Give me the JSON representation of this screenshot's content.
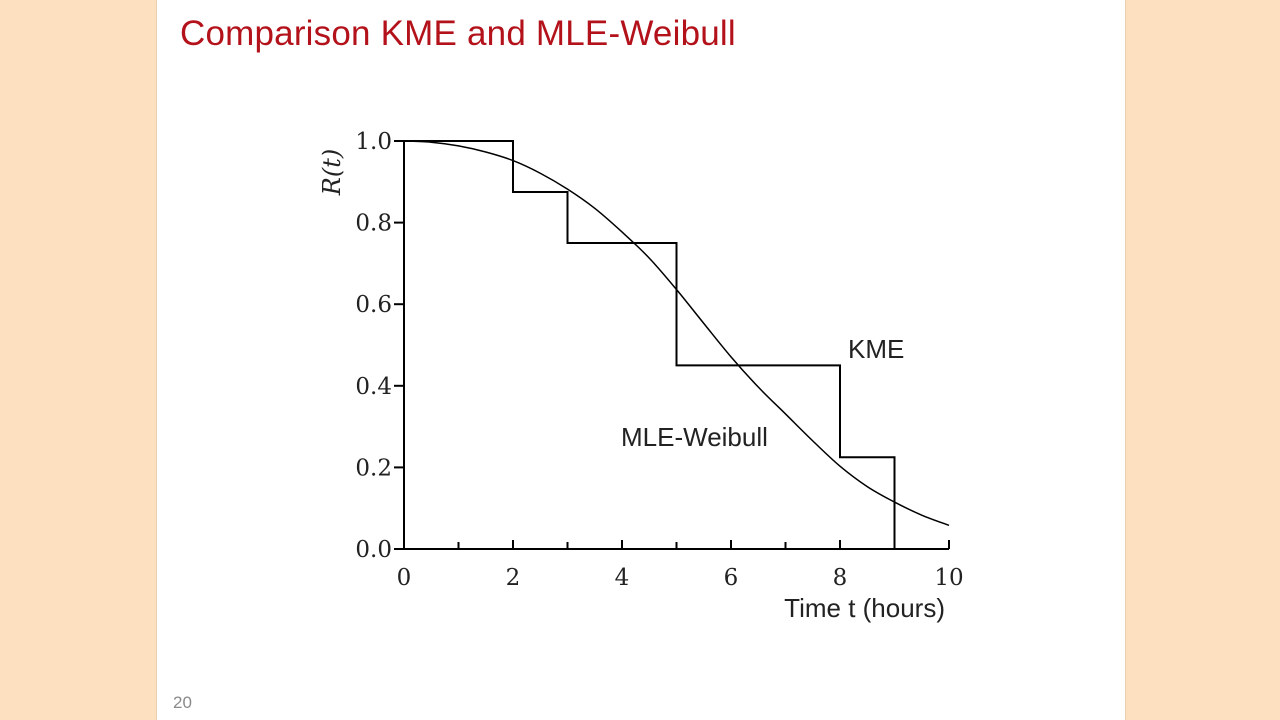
{
  "slide": {
    "title": "Comparison KME and MLE-Weibull",
    "page_number": "20"
  },
  "chart_data": {
    "type": "line",
    "xlabel": "Time t (hours)",
    "ylabel": "R(t)",
    "xlim": [
      0,
      10
    ],
    "ylim": [
      0,
      1.0
    ],
    "x_ticks": [
      0,
      2,
      4,
      6,
      8,
      10
    ],
    "x_minor_ticks": [
      1,
      3,
      5,
      7,
      9
    ],
    "y_ticks": [
      "0.0",
      "0.2",
      "0.4",
      "0.6",
      "0.8",
      "1.0"
    ],
    "grid": false,
    "series": [
      {
        "name": "KME",
        "style": "step",
        "x": [
          0,
          2,
          2,
          3,
          3,
          5,
          5,
          8,
          8,
          9,
          9
        ],
        "y": [
          1.0,
          1.0,
          0.875,
          0.875,
          0.75,
          0.75,
          0.45,
          0.45,
          0.225,
          0.225,
          0.0
        ]
      },
      {
        "name": "MLE-Weibull",
        "style": "smooth",
        "x": [
          0,
          0.5,
          1,
          1.5,
          2,
          2.5,
          3,
          3.5,
          4,
          4.5,
          5,
          5.5,
          6,
          6.5,
          7,
          7.5,
          8,
          8.5,
          9,
          9.5,
          10
        ],
        "y": [
          1.0,
          0.997,
          0.988,
          0.973,
          0.952,
          0.921,
          0.882,
          0.835,
          0.777,
          0.713,
          0.636,
          0.553,
          0.471,
          0.397,
          0.331,
          0.265,
          0.203,
          0.153,
          0.115,
          0.083,
          0.058
        ]
      }
    ],
    "annotations": [
      "KME",
      "MLE-Weibull"
    ],
    "colors": {
      "line": "#000000",
      "title": "#b3121b"
    }
  }
}
